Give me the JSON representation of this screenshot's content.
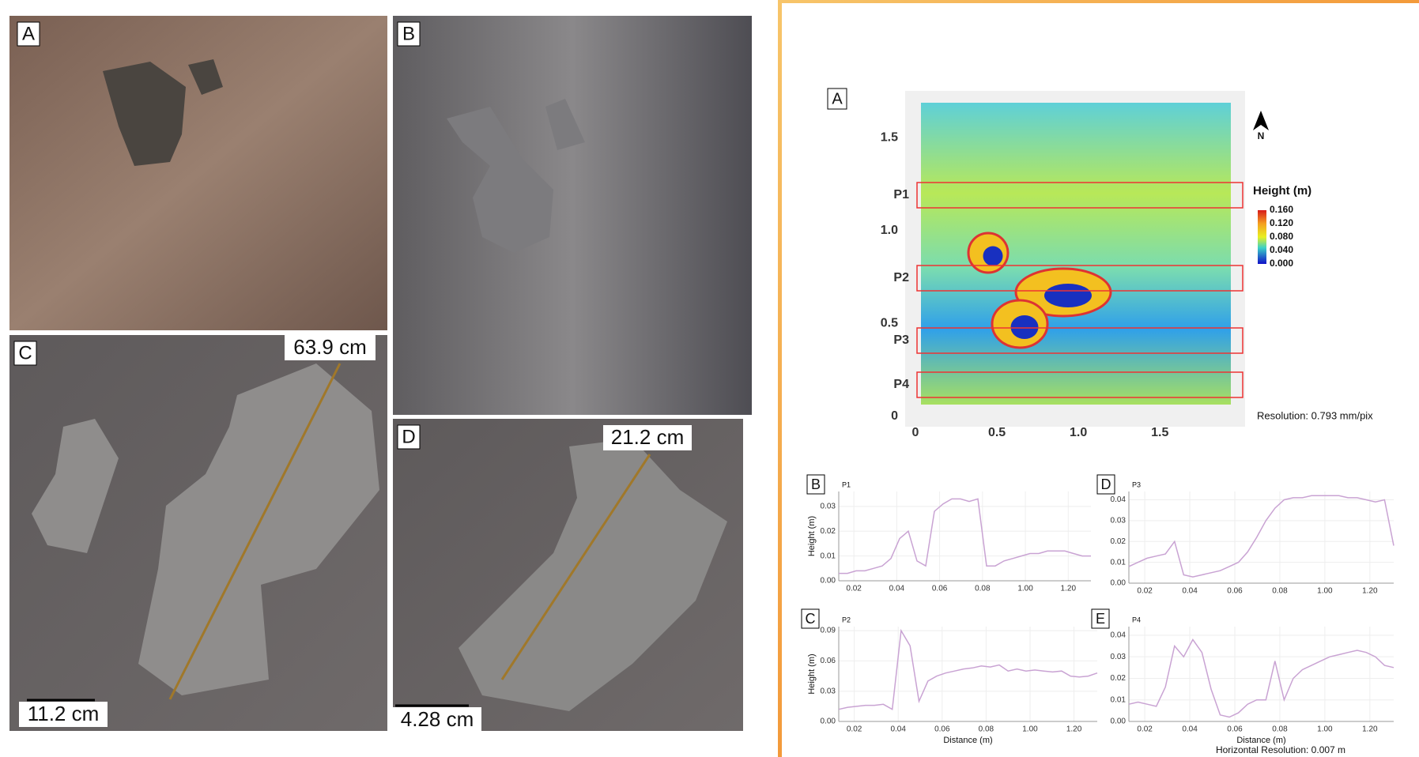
{
  "photos": [
    {
      "label": "A"
    },
    {
      "label": "B"
    },
    {
      "label": "C",
      "measure": "63.9 cm",
      "scale_bar": "11.2 cm"
    },
    {
      "label": "D",
      "measure": "21.2 cm",
      "scale_bar": "4.28 cm"
    }
  ],
  "height_map": {
    "label": "A",
    "north": "N",
    "xlim": [
      0,
      1.95
    ],
    "ylim": [
      0,
      1.7
    ],
    "xticks": [
      0,
      0.5,
      {
        "value": 1,
        "label": "1.0"
      },
      1.5
    ],
    "yticks": [
      0,
      0.5,
      {
        "value": 1,
        "label": "1.0"
      },
      1.5
    ],
    "profiles": [
      "P1",
      "P2",
      "P3",
      "P4"
    ],
    "legend_title": "Height (m)",
    "legend_ticks": [
      {
        "value": 0.16,
        "label": "0.160"
      },
      {
        "value": 0.12,
        "label": "0.120"
      },
      {
        "value": 0.08,
        "label": "0.080"
      },
      {
        "value": 0.04,
        "label": "0.040"
      },
      {
        "value": 0,
        "label": "0.000"
      }
    ],
    "resolution": "Resolution: 0.793 mm/pix"
  },
  "profile_charts": [
    {
      "panel": "B",
      "type": "line",
      "name": "P1",
      "y_label": "Height (m)",
      "color": "#c9a3d3",
      "ylim": [
        0,
        0.036
      ],
      "yticks": [
        {
          "value": 0,
          "label": "0.00"
        },
        0.01,
        0.02,
        0.03
      ],
      "xticklabels": [
        "0.02",
        "0.04",
        "0.06",
        "0.08",
        "1.00",
        "1.20"
      ],
      "values": [
        0.003,
        0.003,
        0.004,
        0.004,
        0.005,
        0.006,
        0.009,
        0.017,
        0.02,
        0.008,
        0.006,
        0.028,
        0.031,
        0.033,
        0.033,
        0.032,
        0.033,
        0.006,
        0.006,
        0.008,
        0.009,
        0.01,
        0.011,
        0.011,
        0.012,
        0.012,
        0.012,
        0.011,
        0.01,
        0.01
      ]
    },
    {
      "panel": "C",
      "type": "line",
      "name": "P2",
      "y_label": "Height (m)",
      "x_label": "Distance (m)",
      "color": "#c9a3d3",
      "ylim": [
        0,
        0.094
      ],
      "yticks": [
        {
          "value": 0,
          "label": "0.00"
        },
        0.03,
        0.06,
        0.09
      ],
      "xticklabels": [
        "0.02",
        "0.04",
        "0.06",
        "0.08",
        "1.00",
        "1.20"
      ],
      "values": [
        0.012,
        0.014,
        0.015,
        0.016,
        0.016,
        0.017,
        0.012,
        0.09,
        0.075,
        0.02,
        0.04,
        0.045,
        0.048,
        0.05,
        0.052,
        0.053,
        0.055,
        0.054,
        0.056,
        0.05,
        0.052,
        0.05,
        0.051,
        0.05,
        0.049,
        0.05,
        0.045,
        0.044,
        0.045,
        0.048
      ]
    },
    {
      "panel": "D",
      "type": "line",
      "name": "P3",
      "color": "#c9a3d3",
      "ylim": [
        0,
        0.044
      ],
      "yticks": [
        {
          "value": 0,
          "label": "0.00"
        },
        0.01,
        0.02,
        0.03,
        0.04
      ],
      "xticklabels": [
        "0.02",
        "0.04",
        "0.06",
        "0.08",
        "1.00",
        "1.20"
      ],
      "values": [
        0.008,
        0.01,
        0.012,
        0.013,
        0.014,
        0.02,
        0.004,
        0.003,
        0.004,
        0.005,
        0.006,
        0.008,
        0.01,
        0.015,
        0.022,
        0.03,
        0.036,
        0.04,
        0.041,
        0.041,
        0.042,
        0.042,
        0.042,
        0.042,
        0.041,
        0.041,
        0.04,
        0.039,
        0.04,
        0.018
      ]
    },
    {
      "panel": "E",
      "type": "line",
      "name": "P4",
      "x_label": "Distance (m)",
      "color": "#c9a3d3",
      "ylim": [
        0,
        0.044
      ],
      "yticks": [
        {
          "value": 0,
          "label": "0.00"
        },
        0.01,
        0.02,
        0.03,
        0.04
      ],
      "xticklabels": [
        "0.02",
        "0.04",
        "0.06",
        "0.08",
        "1.00",
        "1.20"
      ],
      "values": [
        0.008,
        0.009,
        0.008,
        0.007,
        0.016,
        0.035,
        0.03,
        0.038,
        0.032,
        0.015,
        0.003,
        0.002,
        0.004,
        0.008,
        0.01,
        0.01,
        0.028,
        0.01,
        0.02,
        0.024,
        0.026,
        0.028,
        0.03,
        0.031,
        0.032,
        0.033,
        0.032,
        0.03,
        0.026,
        0.025
      ]
    }
  ],
  "footer": "Horizontal Resolution: 0.007 m"
}
